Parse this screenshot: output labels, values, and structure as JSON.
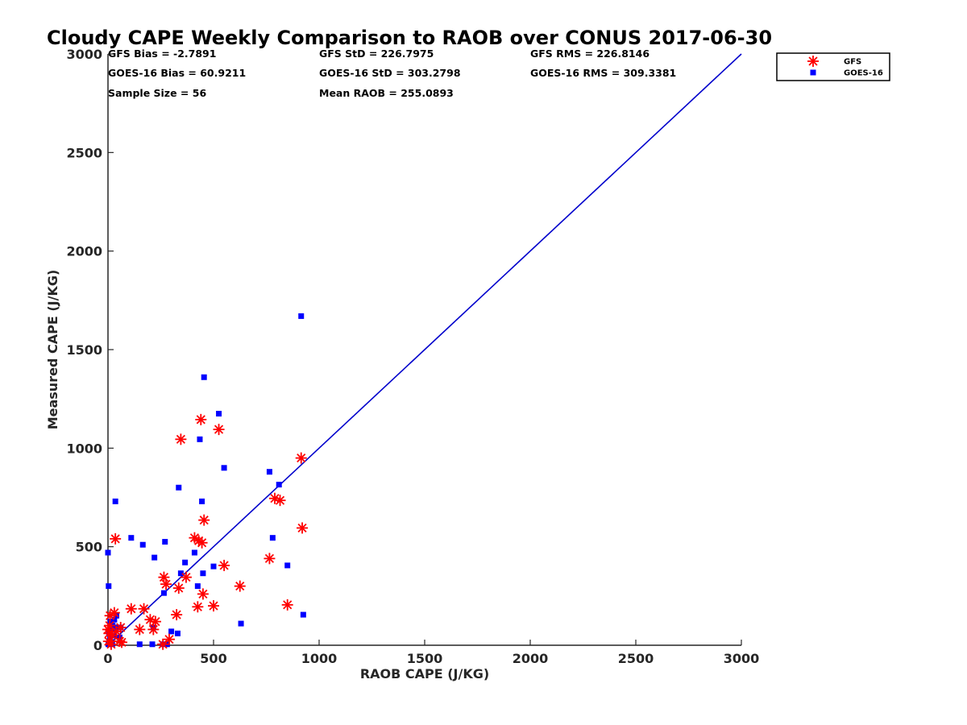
{
  "chart_data": {
    "type": "scatter",
    "title": "Cloudy CAPE Weekly Comparison to RAOB over CONUS 2017-06-30",
    "xlabel": "RAOB CAPE (J/KG)",
    "ylabel": "Measured CAPE (J/KG)",
    "xlim": [
      0,
      3000
    ],
    "ylim": [
      0,
      3000
    ],
    "xticks": [
      0,
      500,
      1000,
      1500,
      2000,
      2500,
      3000
    ],
    "yticks": [
      0,
      500,
      1000,
      1500,
      2000,
      2500,
      3000
    ],
    "grid": false,
    "legend_position": "top-right",
    "reference_line": {
      "x": [
        0,
        3000
      ],
      "y": [
        0,
        3000
      ],
      "color": "#0000cc"
    },
    "stats": [
      "GFS Bias = -2.7891",
      "GFS StD = 226.7975",
      "GFS RMS = 226.8146",
      "GOES-16 Bias = 60.9211",
      "GOES-16 StD = 303.2798",
      "GOES-16 RMS = 309.3381",
      "Sample Size = 56",
      "Mean RAOB = 255.0893"
    ],
    "series": [
      {
        "name": "GFS",
        "marker": "asterisk",
        "color": "#ff0000",
        "x": [
          0,
          3,
          5,
          8,
          10,
          15,
          20,
          30,
          35,
          40,
          55,
          60,
          65,
          110,
          150,
          170,
          200,
          215,
          225,
          260,
          265,
          275,
          290,
          325,
          335,
          345,
          370,
          410,
          425,
          430,
          440,
          445,
          450,
          455,
          500,
          525,
          550,
          625,
          765,
          790,
          815,
          850,
          915,
          920
        ],
        "y": [
          80,
          20,
          60,
          100,
          150,
          5,
          50,
          165,
          540,
          70,
          20,
          90,
          15,
          185,
          80,
          185,
          130,
          80,
          120,
          5,
          345,
          310,
          30,
          155,
          290,
          1045,
          345,
          545,
          195,
          530,
          1145,
          520,
          260,
          635,
          200,
          1095,
          405,
          300,
          440,
          745,
          735,
          205,
          950,
          595
        ]
      },
      {
        "name": "GOES-16",
        "marker": "square",
        "color": "#0000ff",
        "x": [
          0,
          2,
          3,
          5,
          7,
          10,
          12,
          15,
          18,
          20,
          22,
          25,
          30,
          35,
          40,
          45,
          55,
          60,
          110,
          150,
          165,
          210,
          215,
          220,
          260,
          265,
          270,
          280,
          300,
          330,
          335,
          345,
          365,
          410,
          425,
          435,
          445,
          450,
          455,
          500,
          525,
          550,
          630,
          765,
          780,
          810,
          850,
          915,
          925
        ],
        "y": [
          470,
          5,
          300,
          60,
          20,
          40,
          120,
          10,
          80,
          5,
          100,
          50,
          130,
          730,
          150,
          90,
          40,
          90,
          545,
          5,
          510,
          5,
          90,
          445,
          5,
          265,
          525,
          5,
          70,
          60,
          800,
          365,
          420,
          470,
          300,
          1045,
          730,
          365,
          1360,
          400,
          1175,
          900,
          110,
          880,
          545,
          815,
          405,
          1670,
          155
        ]
      }
    ]
  }
}
